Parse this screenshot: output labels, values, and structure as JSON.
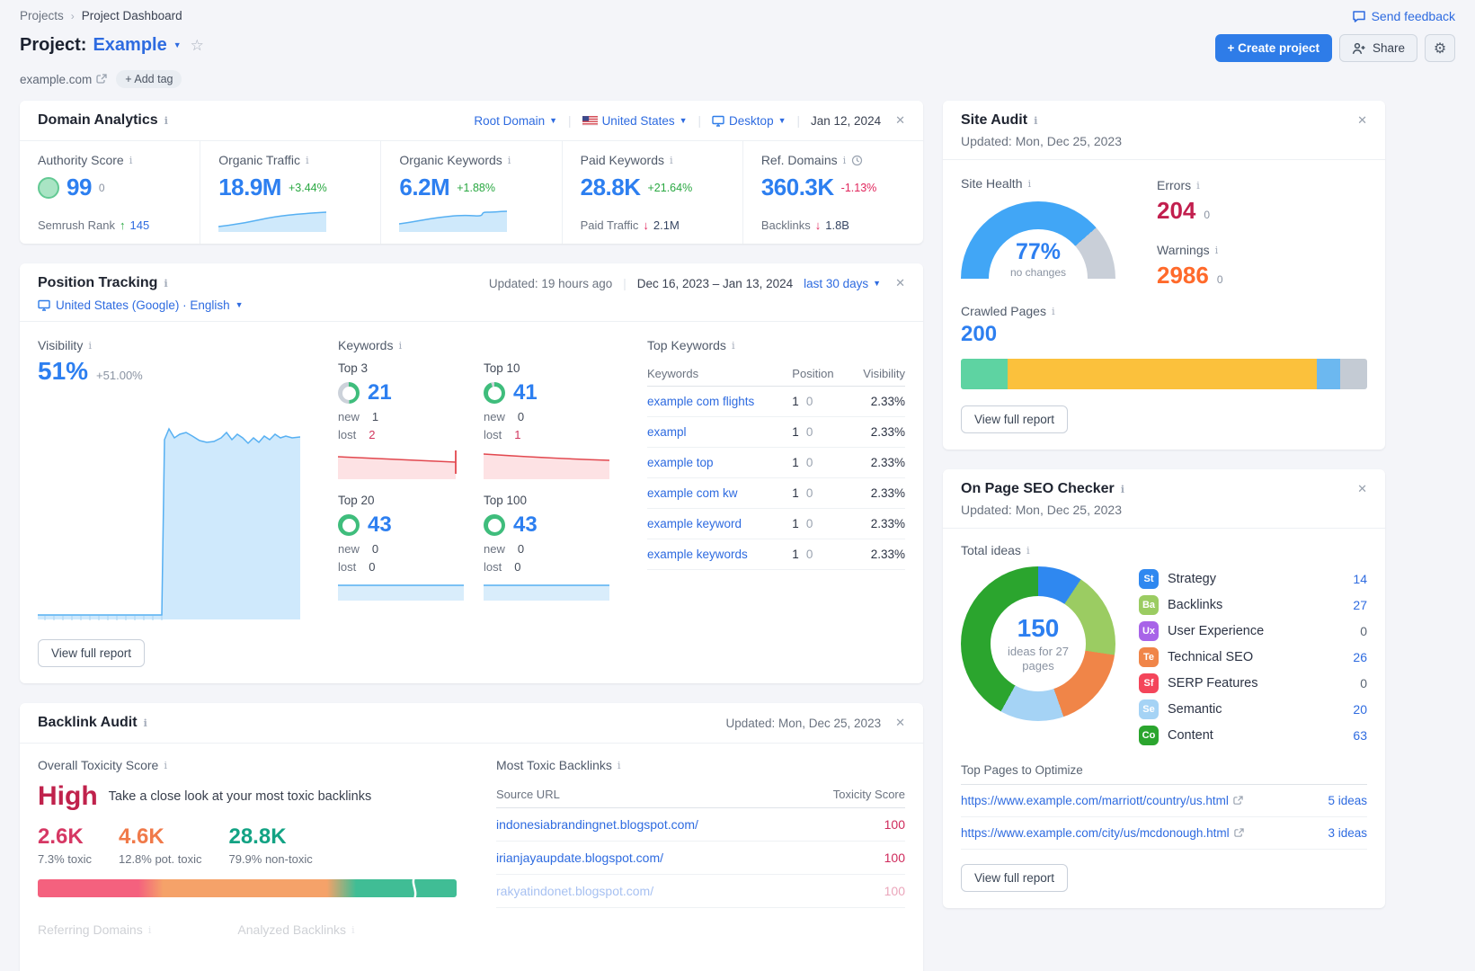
{
  "page": {
    "breadcrumb": {
      "root": "Projects",
      "current": "Project Dashboard"
    },
    "title": {
      "prefix": "Project:",
      "project": "Example"
    },
    "domain": "example.com",
    "add_tag_label": "+ Add tag",
    "send_feedback_label": "Send feedback",
    "create_project_label": "+ Create project",
    "share_label": "Share"
  },
  "colors": {
    "accent_blue": "#2e7ce8",
    "metric_blue": "#2d7ff0",
    "positive_green": "#2aa842",
    "negative_red": "#e0265c",
    "error_red": "#c21f4e",
    "warning_orange": "#ff6a2b",
    "gauge_blue": "#41a6f6",
    "ring_green": "#3fbd7c",
    "ring_gray": "#ccd2da"
  },
  "domain_analytics": {
    "title": "Domain Analytics",
    "filters": {
      "scope": "Root Domain",
      "country": "United States",
      "device": "Desktop",
      "date": "Jan 12, 2024"
    },
    "authority": {
      "label": "Authority Score",
      "value": "99",
      "delta": "0",
      "rank_label": "Semrush Rank",
      "rank_value": "145"
    },
    "organic_traffic": {
      "label": "Organic Traffic",
      "value": "18.9M",
      "delta": "+3.44%"
    },
    "organic_keywords": {
      "label": "Organic Keywords",
      "value": "6.2M",
      "delta": "+1.88%"
    },
    "paid_keywords": {
      "label": "Paid Keywords",
      "value": "28.8K",
      "delta": "+21.64%",
      "sub_label": "Paid Traffic",
      "sub_value": "2.1M"
    },
    "ref_domains": {
      "label": "Ref. Domains",
      "value": "360.3K",
      "delta": "-1.13%",
      "sub_label": "Backlinks",
      "sub_value": "1.8B"
    }
  },
  "position_tracking": {
    "title": "Position Tracking",
    "updated": "Updated: 19 hours ago",
    "date_range": "Dec 16, 2023 – Jan 13, 2024",
    "range_label": "last 30 days",
    "locale": "United States (Google) · English",
    "visibility": {
      "label": "Visibility",
      "value": "51%",
      "delta": "+51.00%"
    },
    "keywords_label": "Keywords",
    "new_label": "new",
    "lost_label": "lost",
    "buckets": [
      {
        "label": "Top 3",
        "value": "21",
        "new": "1",
        "lost": "2",
        "ring_pct": 49
      },
      {
        "label": "Top 10",
        "value": "41",
        "new": "0",
        "lost": "1",
        "ring_pct": 95
      },
      {
        "label": "Top 20",
        "value": "43",
        "new": "0",
        "lost": "0",
        "ring_pct": 100
      },
      {
        "label": "Top 100",
        "value": "43",
        "new": "0",
        "lost": "0",
        "ring_pct": 100
      }
    ],
    "top_keywords": {
      "label": "Top Keywords",
      "headers": [
        "Keywords",
        "Position",
        "Visibility"
      ],
      "rows": [
        {
          "keyword": "example com flights",
          "position": "1",
          "change": "0",
          "visibility": "2.33%"
        },
        {
          "keyword": "exampl",
          "position": "1",
          "change": "0",
          "visibility": "2.33%"
        },
        {
          "keyword": "example top",
          "position": "1",
          "change": "0",
          "visibility": "2.33%"
        },
        {
          "keyword": "example com kw",
          "position": "1",
          "change": "0",
          "visibility": "2.33%"
        },
        {
          "keyword": "example keyword",
          "position": "1",
          "change": "0",
          "visibility": "2.33%"
        },
        {
          "keyword": "example keywords",
          "position": "1",
          "change": "0",
          "visibility": "2.33%"
        }
      ]
    },
    "view_full_report_label": "View full report"
  },
  "site_audit": {
    "title": "Site Audit",
    "updated": "Updated: Mon, Dec 25, 2023",
    "site_health": {
      "label": "Site Health",
      "value": "77%",
      "pct": 77,
      "note": "no changes"
    },
    "errors": {
      "label": "Errors",
      "value": "204",
      "delta": "0"
    },
    "warnings": {
      "label": "Warnings",
      "value": "2986",
      "delta": "0"
    },
    "crawled_pages": {
      "label": "Crawled Pages",
      "value": "200",
      "segments": [
        {
          "name": "healthy",
          "color": "#5ed3a2",
          "pct": 11.5
        },
        {
          "name": "issues",
          "color": "#fbc13c",
          "pct": 76
        },
        {
          "name": "redirects",
          "color": "#6cb8f0",
          "pct": 5.8
        },
        {
          "name": "blocked",
          "color": "#c4cbd4",
          "pct": 6.7
        }
      ]
    },
    "view_full_report_label": "View full report"
  },
  "on_page_seo": {
    "title": "On Page SEO Checker",
    "updated": "Updated: Mon, Dec 25, 2023",
    "total_ideas_label": "Total ideas",
    "total": {
      "value": "150",
      "caption_line1": "ideas for 27",
      "caption_line2": "pages"
    },
    "categories": [
      {
        "badge": "St",
        "label": "Strategy",
        "value": "14",
        "color": "#2f88f0"
      },
      {
        "badge": "Ba",
        "label": "Backlinks",
        "value": "27",
        "color": "#9bcc62"
      },
      {
        "badge": "Ux",
        "label": "User Experience",
        "value": "0",
        "color": "#a864e8"
      },
      {
        "badge": "Te",
        "label": "Technical SEO",
        "value": "26",
        "color": "#f08548"
      },
      {
        "badge": "Sf",
        "label": "SERP Features",
        "value": "0",
        "color": "#f4455a"
      },
      {
        "badge": "Se",
        "label": "Semantic",
        "value": "20",
        "color": "#a5d3f5"
      },
      {
        "badge": "Co",
        "label": "Content",
        "value": "63",
        "color": "#2ba52e"
      }
    ],
    "top_pages": {
      "label": "Top Pages to Optimize",
      "rows": [
        {
          "url": "https://www.example.com/marriott/country/us.html",
          "ideas": "5 ideas"
        },
        {
          "url": "https://www.example.com/city/us/mcdonough.html",
          "ideas": "3 ideas"
        }
      ]
    },
    "view_full_report_label": "View full report"
  },
  "backlink_audit": {
    "title": "Backlink Audit",
    "updated": "Updated: Mon, Dec 25, 2023",
    "toxicity_label": "Overall Toxicity Score",
    "score": "High",
    "score_note": "Take a close look at your most toxic backlinks",
    "stats": [
      {
        "value": "2.6K",
        "label": "7.3% toxic",
        "color": "#d63864"
      },
      {
        "value": "4.6K",
        "label": "12.8% pot. toxic",
        "color": "#f07a4a"
      },
      {
        "value": "28.8K",
        "label": "79.9% non-toxic",
        "color": "#13a384"
      }
    ],
    "bar_colors": [
      "#f4617e",
      "#f5a269",
      "#40bd95"
    ],
    "bottom_labels": [
      "Referring Domains",
      "Analyzed Backlinks"
    ],
    "most_toxic": {
      "label": "Most Toxic Backlinks",
      "headers": [
        "Source URL",
        "Toxicity Score"
      ],
      "rows": [
        {
          "url": "indonesiabrandingnet.blogspot.com/",
          "score": "100"
        },
        {
          "url": "irianjayaupdate.blogspot.com/",
          "score": "100"
        },
        {
          "url": "rakyatindonet.blogspot.com/",
          "score": "100"
        }
      ]
    }
  }
}
